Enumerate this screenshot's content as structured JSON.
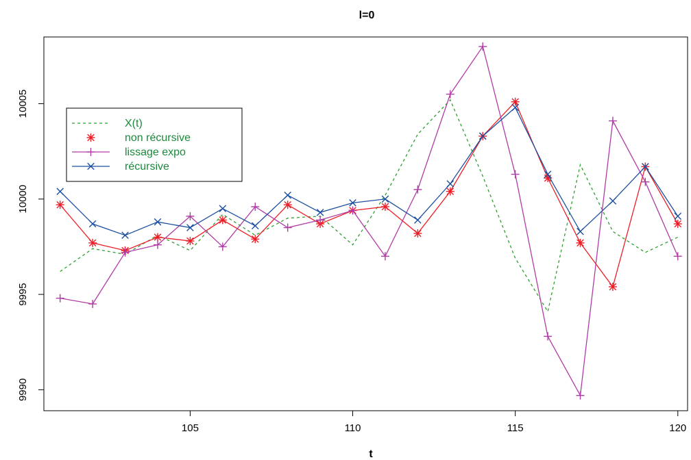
{
  "chart_data": {
    "type": "line",
    "title": "l=0",
    "xlabel": "t",
    "ylabel": "",
    "xlim": [
      100.5,
      120.3
    ],
    "ylim": [
      9988.9,
      10008.5
    ],
    "x_ticks": [
      105,
      110,
      115,
      120
    ],
    "x_tick_labels": [
      "105",
      "110",
      "115",
      "120"
    ],
    "y_ticks": [
      9990,
      9995,
      10000,
      10005
    ],
    "y_tick_labels": [
      "9990",
      "9995",
      "10000",
      "10005"
    ],
    "grid": false,
    "legend_position": "top-left",
    "x": [
      101,
      102,
      103,
      104,
      105,
      106,
      107,
      108,
      109,
      110,
      111,
      112,
      113,
      114,
      115,
      116,
      117,
      118,
      119,
      120
    ],
    "series": [
      {
        "name": "X(t)",
        "color": "#2ca02c",
        "line": "dashed",
        "marker": "none",
        "values": [
          9996.2,
          9997.4,
          9997.1,
          9998.1,
          9997.3,
          9999.2,
          9998.1,
          9999.0,
          9999.1,
          9997.6,
          10000.2,
          10003.4,
          10005.2,
          10001.2,
          9996.9,
          9994.1,
          10001.8,
          9998.3,
          9997.2,
          9998.0
        ]
      },
      {
        "name": "non récursive",
        "color": "#ee1c25",
        "line": "solid",
        "marker": "asterisk",
        "values": [
          9999.7,
          9997.7,
          9997.3,
          9998.0,
          9997.8,
          9998.9,
          9997.9,
          9999.7,
          9998.7,
          9999.4,
          9999.6,
          9998.2,
          10000.4,
          10003.3,
          10005.1,
          10001.1,
          9997.7,
          9995.4,
          10001.7,
          9998.7
        ]
      },
      {
        "name": "lissage expo",
        "color": "#b03aa6",
        "line": "solid",
        "marker": "plus",
        "values": [
          9994.8,
          9994.5,
          9997.2,
          9997.6,
          9999.1,
          9997.5,
          9999.6,
          9998.5,
          9998.9,
          9999.4,
          9997.0,
          10000.5,
          10005.5,
          10008.0,
          10001.3,
          9992.8,
          9989.7,
          10004.1,
          10000.9,
          9997.0
        ]
      },
      {
        "name": "récursive",
        "color": "#1c4fa0",
        "line": "solid",
        "marker": "x",
        "values": [
          10000.4,
          9998.7,
          9998.1,
          9998.8,
          9998.5,
          9999.5,
          9998.6,
          10000.2,
          9999.3,
          9999.8,
          10000.0,
          9998.9,
          10000.8,
          10003.3,
          10004.8,
          10001.3,
          9998.3,
          9999.9,
          10001.7,
          9999.1
        ]
      }
    ]
  }
}
